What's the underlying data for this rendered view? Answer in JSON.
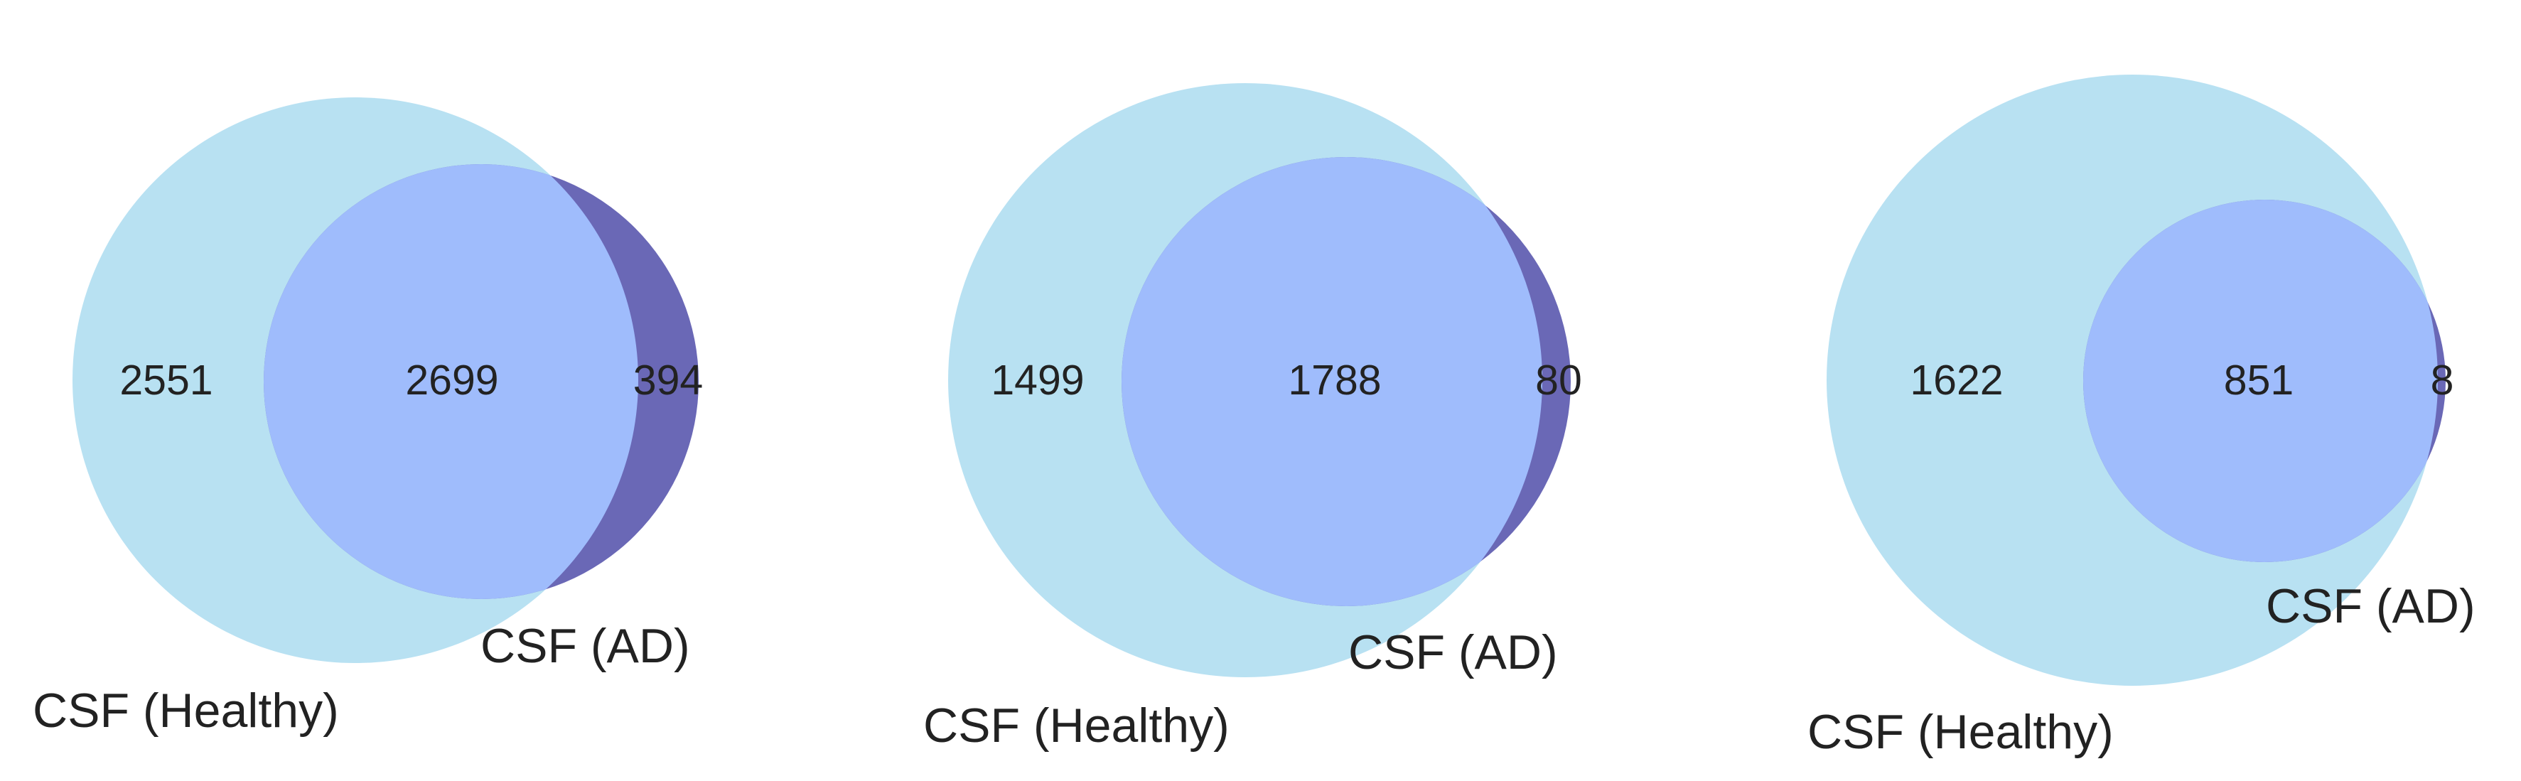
{
  "colors": {
    "healthy_only": "#b8e1f2",
    "overlap": "#9fbcfc",
    "ad_only": "#6a68b6",
    "text": "#222222",
    "background": "#ffffff"
  },
  "diagrams": [
    {
      "set_a_label": "CSF (Healthy)",
      "set_b_label": "CSF (AD)",
      "only_a": "2551",
      "both": "2699",
      "only_b": "394"
    },
    {
      "set_a_label": "CSF (Healthy)",
      "set_b_label": "CSF (AD)",
      "only_a": "1499",
      "both": "1788",
      "only_b": "80"
    },
    {
      "set_a_label": "CSF (Healthy)",
      "set_b_label": "CSF (AD)",
      "only_a": "1622",
      "both": "851",
      "only_b": "8"
    }
  ]
}
